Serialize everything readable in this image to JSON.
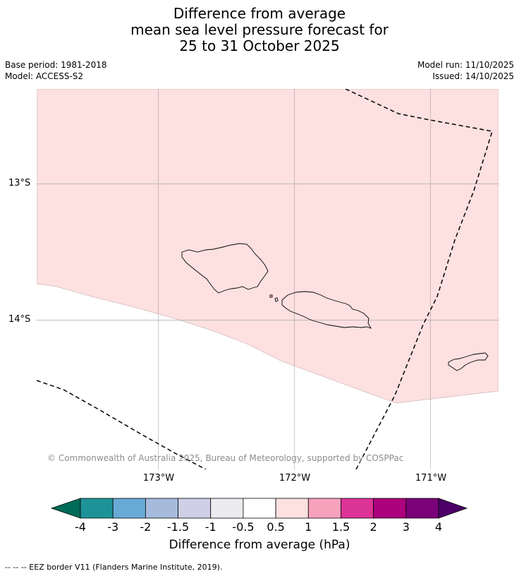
{
  "title": {
    "line1": "Difference from average",
    "line2": "mean sea level pressure forecast for",
    "line3": "25 to 31 October 2025"
  },
  "meta": {
    "base_period": "Base period: 1981-2018",
    "model": "Model: ACCESS-S2",
    "model_run": "Model run: 11/10/2025",
    "issued": "Issued: 14/10/2025"
  },
  "map": {
    "lon_labels": [
      "173°W",
      "172°W",
      "171°W"
    ],
    "lat_labels": [
      "13°S",
      "14°S"
    ],
    "fill_color": "#fde0e0",
    "copyright": "© Commonwealth of Australia 2025, Bureau of Meteorology, supported by COSPPac"
  },
  "colorbar": {
    "title": "Difference from average (hPa)",
    "tick_labels": [
      "-4",
      "-3",
      "-2",
      "-1.5",
      "-1",
      "-0.5",
      "0.5",
      "1",
      "1.5",
      "2",
      "3",
      "4"
    ],
    "under_color": "#006b58",
    "over_color": "#4c0068",
    "colors": [
      "#1d9397",
      "#68aad6",
      "#a6bbdc",
      "#cfd0e8",
      "#ecebf0",
      "#ffffff",
      "#fde0e0",
      "#f7a1bd",
      "#dd3497",
      "#ad017d",
      "#7a0177"
    ]
  },
  "legend": {
    "eez_text": "--  --  -- EEZ border V11 (Flanders Marine Institute, 2019)."
  }
}
